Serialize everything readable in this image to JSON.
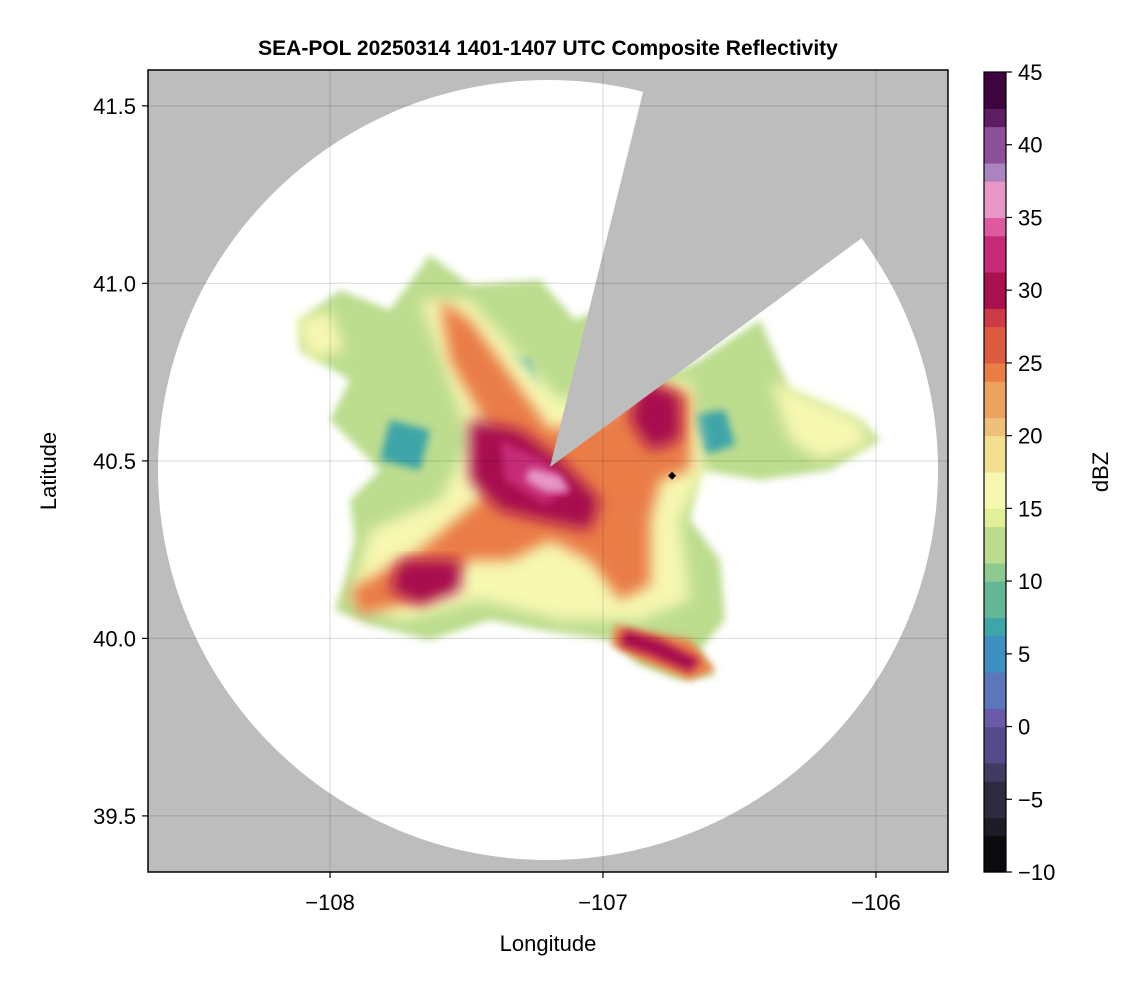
{
  "chart_data": {
    "type": "heatmap",
    "title": "SEA-POL 20250314 1401-1407 UTC Composite Reflectivity",
    "xlabel": "Longitude",
    "ylabel": "Latitude",
    "xlim": [
      -108.667,
      -105.736
    ],
    "ylim": [
      39.342,
      41.601
    ],
    "xticks": [
      -108,
      -107,
      -106
    ],
    "xtick_labels": [
      "−108",
      "−107",
      "−106"
    ],
    "yticks": [
      39.5,
      40.0,
      40.5,
      41.0,
      41.5
    ],
    "ytick_labels": [
      "39.5",
      "40.0",
      "40.5",
      "41.0",
      "41.5"
    ],
    "grid": true,
    "colorbar": {
      "label": "dBZ",
      "range": [
        -10,
        45
      ],
      "ticks": [
        -10,
        -5,
        0,
        5,
        10,
        15,
        20,
        25,
        30,
        35,
        40,
        45
      ],
      "tick_labels": [
        "−10",
        "−5",
        "0",
        "5",
        "10",
        "15",
        "20",
        "25",
        "30",
        "35",
        "40",
        "45"
      ],
      "levels": 44,
      "colormap": [
        "#0a0a0f",
        "#1d1b26",
        "#2e2a40",
        "#433a62",
        "#574a8a",
        "#6a5aa8",
        "#5b76ba",
        "#3e90c0",
        "#3ea5a8",
        "#63b797",
        "#8ec98e",
        "#bcdc8e",
        "#e2ee98",
        "#f6f7b0",
        "#f2e08f",
        "#eec07a",
        "#eea15e",
        "#ea7c46",
        "#df5b40",
        "#cc3a45",
        "#a8104e",
        "#c72a76",
        "#dd5aa0",
        "#e796c6",
        "#ab84bf",
        "#8c4f9a",
        "#5e1d62",
        "#3d0440"
      ]
    },
    "background": {
      "no_data_color": "#bdbdbd",
      "in_range_color": "#ffffff"
    },
    "radar_coverage": {
      "center_lon": -107.19,
      "center_lat": 40.48,
      "blocked_sector_deg": [
        15,
        57
      ]
    },
    "marker": {
      "lon": -106.747,
      "lat": 40.458,
      "shape": "diamond",
      "color": "#000000"
    },
    "reflectivity_features": [
      {
        "name": "core",
        "lon": -107.19,
        "lat": 40.45,
        "dbz": 38
      },
      {
        "name": "southern-band",
        "lon": -106.8,
        "lat": 39.96,
        "dbz": 30
      },
      {
        "name": "southwest-band",
        "lon": -107.6,
        "lat": 40.2,
        "dbz": 32
      }
    ]
  }
}
